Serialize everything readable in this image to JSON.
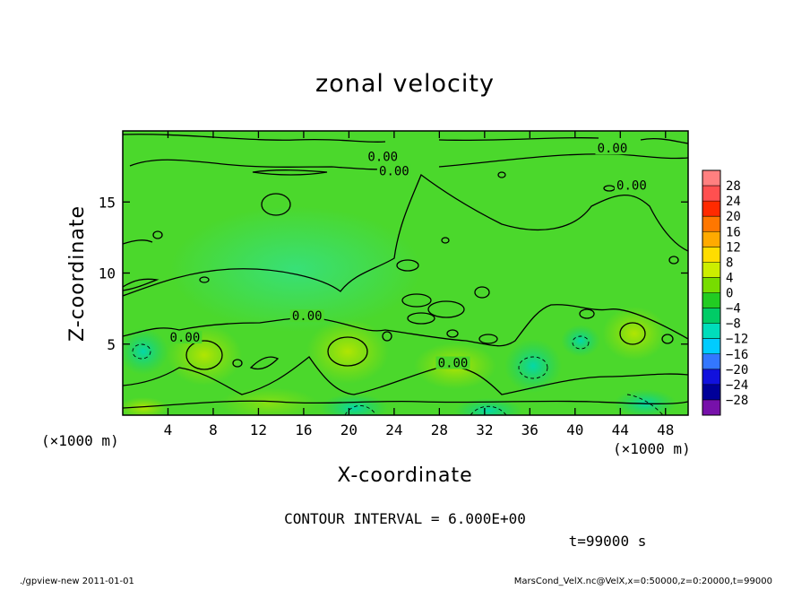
{
  "chart_data": {
    "type": "heatmap",
    "title": "zonal velocity",
    "xlabel": "X-coordinate",
    "ylabel": "Z-coordinate",
    "x_unit_label": "(×1000 m)",
    "y_unit_label": "(×1000 m)",
    "xlim": [
      0,
      50
    ],
    "ylim": [
      0,
      20
    ],
    "x_ticks": [
      4,
      8,
      12,
      16,
      20,
      24,
      28,
      32,
      36,
      40,
      44,
      48
    ],
    "y_ticks": [
      5,
      10,
      15
    ],
    "colorbar": {
      "labels": [
        "28",
        "24",
        "20",
        "16",
        "12",
        "8",
        "4",
        "0",
        "−4",
        "−8",
        "−12",
        "−16",
        "−20",
        "−24",
        "−28"
      ],
      "colors": [
        "#ff8080",
        "#ff5050",
        "#ff2a00",
        "#ff7700",
        "#ffaa00",
        "#ffdd00",
        "#ccee00",
        "#77dd00",
        "#22cc22",
        "#00cc66",
        "#00ddbb",
        "#00ccff",
        "#3377ff",
        "#1111dd",
        "#000099",
        "#7711aa"
      ]
    },
    "contour_labels": [
      {
        "x": 23.0,
        "z": 18.0,
        "text": "0.00"
      },
      {
        "x": 43.3,
        "z": 18.6,
        "text": "0.00"
      },
      {
        "x": 24.0,
        "z": 17.0,
        "text": "0.00"
      },
      {
        "x": 45.0,
        "z": 16.0,
        "text": "0.00"
      },
      {
        "x": 16.3,
        "z": 6.8,
        "text": "0.00"
      },
      {
        "x": 5.5,
        "z": 5.3,
        "text": "0.00"
      },
      {
        "x": 29.2,
        "z": 3.5,
        "text": "0.00"
      }
    ],
    "contour_interval_text": "CONTOUR INTERVAL = 6.000E+00",
    "time_text": "t=99000 s"
  },
  "footer": {
    "left": "./gpview-new   2011-01-01",
    "right": "MarsCond_VelX.nc@VelX,x=0:50000,z=0:20000,t=99000"
  }
}
